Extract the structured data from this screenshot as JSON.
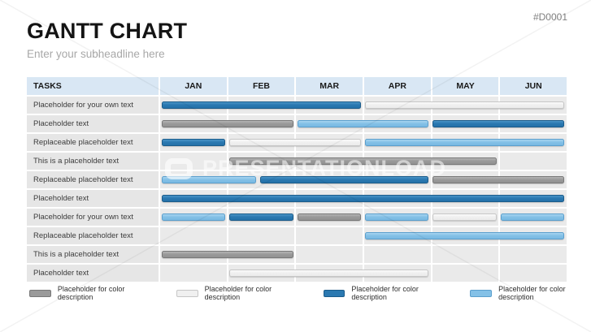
{
  "slide": {
    "title": "GANTT CHART",
    "subheadline": "Enter your subheadline here",
    "ref": "#D0001",
    "watermark": "PRESENTATIONLOAD"
  },
  "colors": {
    "darkblue": "#2b79b1",
    "lightblue": "#84c1e7",
    "gray": "#9a9a9a",
    "white": "#f0f0f0",
    "header_bg": "#d9e7f4",
    "row_label_bg": "#e6e6e6",
    "chart_bg": "#eaeaea"
  },
  "chart_data": {
    "type": "gantt",
    "tasks_header": "TASKS",
    "months": [
      "JAN",
      "FEB",
      "MAR",
      "APR",
      "MAY",
      "JUN"
    ],
    "axis_units": "months, 0 = start of JAN, 6 = end of JUN",
    "rows": [
      {
        "label": "Placeholder for your own text",
        "bars": [
          {
            "start": 0,
            "end": 3,
            "color": "darkblue"
          },
          {
            "start": 3,
            "end": 6,
            "color": "white"
          }
        ]
      },
      {
        "label": "Placeholder text",
        "bars": [
          {
            "start": 0,
            "end": 2,
            "color": "gray"
          },
          {
            "start": 2,
            "end": 4,
            "color": "lightblue"
          },
          {
            "start": 4,
            "end": 6,
            "color": "darkblue"
          }
        ]
      },
      {
        "label": "Replaceable placeholder text",
        "bars": [
          {
            "start": 0,
            "end": 1,
            "color": "darkblue"
          },
          {
            "start": 1,
            "end": 3,
            "color": "white"
          },
          {
            "start": 3,
            "end": 6,
            "color": "lightblue"
          }
        ]
      },
      {
        "label": "This is a placeholder text",
        "bars": [
          {
            "start": 1,
            "end": 5,
            "color": "gray"
          }
        ]
      },
      {
        "label": "Replaceable placeholder text",
        "bars": [
          {
            "start": 0,
            "end": 1.45,
            "color": "lightblue"
          },
          {
            "start": 1.45,
            "end": 4,
            "color": "darkblue"
          },
          {
            "start": 4,
            "end": 6,
            "color": "gray"
          }
        ]
      },
      {
        "label": "Placeholder text",
        "bars": [
          {
            "start": 0,
            "end": 6,
            "color": "darkblue"
          }
        ]
      },
      {
        "label": "Placeholder for your own text",
        "bars": [
          {
            "start": 0,
            "end": 1,
            "color": "lightblue"
          },
          {
            "start": 1,
            "end": 2,
            "color": "darkblue"
          },
          {
            "start": 2,
            "end": 3,
            "color": "gray"
          },
          {
            "start": 3,
            "end": 4,
            "color": "lightblue"
          },
          {
            "start": 4,
            "end": 5,
            "color": "white"
          },
          {
            "start": 5,
            "end": 6,
            "color": "lightblue"
          }
        ]
      },
      {
        "label": "Replaceable placeholder text",
        "bars": [
          {
            "start": 3,
            "end": 6,
            "color": "lightblue"
          }
        ]
      },
      {
        "label": "This is a placeholder text",
        "bars": [
          {
            "start": 0,
            "end": 2,
            "color": "gray"
          }
        ]
      },
      {
        "label": "Placeholder text",
        "bars": [
          {
            "start": 1,
            "end": 4,
            "color": "white"
          }
        ]
      }
    ]
  },
  "legend": {
    "items": [
      {
        "color": "gray",
        "label": "Placeholder for color description"
      },
      {
        "color": "white",
        "label": "Placeholder for color description"
      },
      {
        "color": "darkblue",
        "label": "Placeholder for color description"
      },
      {
        "color": "lightblue",
        "label": "Placeholder for color description"
      }
    ]
  }
}
